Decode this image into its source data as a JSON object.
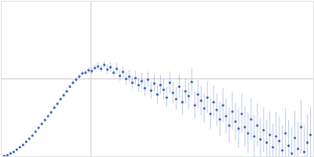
{
  "chart_data": {
    "type": "scatter",
    "color": "#3f67b5",
    "marker": "circle",
    "grid": true,
    "tick_labels": false,
    "xlim": [
      0,
      400
    ],
    "ylim": [
      0,
      200
    ],
    "xticks": [
      115
    ],
    "yticks": [
      100
    ],
    "x": [
      4,
      8,
      12,
      16,
      20,
      24,
      28,
      32,
      36,
      40,
      44,
      48,
      52,
      56,
      60,
      64,
      68,
      72,
      76,
      80,
      84,
      88,
      92,
      96,
      100,
      104,
      108,
      112,
      116,
      120,
      124,
      128,
      132,
      136,
      140,
      144,
      148,
      152,
      156,
      160,
      164,
      168,
      172,
      176,
      180,
      184,
      188,
      192,
      196,
      200,
      204,
      208,
      212,
      216,
      220,
      224,
      228,
      232,
      236,
      240,
      244,
      248,
      252,
      256,
      260,
      264,
      268,
      272,
      276,
      280,
      284,
      288,
      292,
      296,
      300,
      304,
      308,
      312,
      316,
      320,
      324,
      328,
      332,
      336,
      340,
      344,
      348,
      352,
      356,
      360,
      364,
      368,
      372,
      376,
      380,
      384,
      388,
      392,
      396
    ],
    "values": [
      1,
      2,
      4,
      6,
      9,
      12,
      15,
      19,
      23,
      27,
      32,
      37,
      42,
      47,
      52,
      57,
      63,
      68,
      74,
      79,
      84,
      90,
      95,
      99,
      103,
      107,
      108,
      111,
      110,
      114,
      116,
      113,
      118,
      112,
      115,
      108,
      113,
      104,
      109,
      100,
      103,
      95,
      101,
      92,
      97,
      88,
      99,
      85,
      94,
      80,
      92,
      86,
      76,
      95,
      82,
      74,
      90,
      70,
      84,
      78,
      96,
      66,
      80,
      72,
      62,
      76,
      55,
      70,
      60,
      48,
      66,
      52,
      40,
      58,
      45,
      36,
      55,
      38,
      30,
      48,
      26,
      40,
      22,
      34,
      18,
      28,
      12,
      26,
      20,
      8,
      30,
      14,
      4,
      24,
      10,
      38,
      6,
      18,
      28
    ],
    "errors": [
      1,
      1,
      1,
      1,
      1,
      1,
      1,
      1,
      1,
      1,
      1,
      1,
      1,
      1,
      1,
      2,
      2,
      2,
      2,
      2,
      2,
      2,
      3,
      3,
      3,
      3,
      3,
      4,
      4,
      4,
      5,
      5,
      5,
      6,
      6,
      6,
      7,
      7,
      7,
      8,
      8,
      8,
      9,
      9,
      10,
      10,
      10,
      11,
      11,
      12,
      12,
      13,
      13,
      14,
      14,
      15,
      15,
      16,
      16,
      17,
      17,
      18,
      18,
      19,
      19,
      20,
      20,
      21,
      21,
      22,
      22,
      23,
      23,
      24,
      24,
      25,
      25,
      26,
      26,
      27,
      27,
      28,
      28,
      29,
      29,
      30,
      30,
      31,
      31,
      32,
      32,
      33,
      33,
      34,
      34,
      35,
      35,
      36,
      36
    ]
  }
}
